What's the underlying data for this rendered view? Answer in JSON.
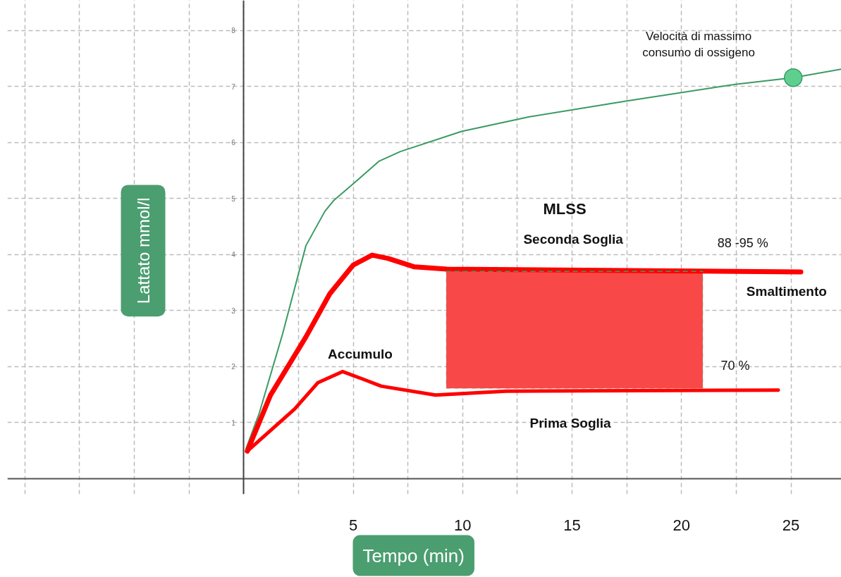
{
  "chart_data": {
    "type": "line",
    "xlabel": "Tempo (min)",
    "ylabel": "Lattato mmol/l",
    "xlim": [
      -10.8,
      27.3
    ],
    "ylim": [
      -0.28,
      8.54
    ],
    "xticks": [
      {
        "value": -10,
        "label": null
      },
      {
        "value": -7.5,
        "label": null
      },
      {
        "value": -5,
        "label": null
      },
      {
        "value": -2.5,
        "label": null
      },
      {
        "value": 0,
        "label": null
      },
      {
        "value": 2.5,
        "label": null
      },
      5,
      {
        "value": 7.5,
        "label": null
      },
      10,
      {
        "value": 12.5,
        "label": null
      },
      15,
      {
        "value": 17.5,
        "label": null
      },
      20,
      {
        "value": 22.5,
        "label": null
      },
      25
    ],
    "yticks": [
      1,
      2,
      3,
      4,
      5,
      6,
      7,
      8
    ],
    "grid": true,
    "series": [
      {
        "color": "#3a9a64",
        "x": [
          0.1,
          0.7,
          1.77,
          2.84,
          3.7,
          4.12,
          4.9,
          6.19,
          7.15,
          9.95,
          13.05,
          17.46,
          22.45,
          25.1,
          27.3
        ],
        "values": [
          0.53,
          1.16,
          2.58,
          4.16,
          4.77,
          4.97,
          5.23,
          5.67,
          5.84,
          6.2,
          6.46,
          6.74,
          7.04,
          7.16,
          7.31
        ]
      },
      {
        "type": "scatter",
        "marker": "circle",
        "color": "#5fcf8f",
        "x": [
          25.1
        ],
        "values": [
          7.16
        ]
      },
      {
        "color": "#ff0000",
        "x": [
          0.16,
          1.22,
          2.84,
          3.93,
          4.99,
          5.86,
          6.6,
          7.8,
          9.28,
          25.45
        ],
        "values": [
          0.49,
          1.49,
          2.53,
          3.3,
          3.81,
          3.99,
          3.93,
          3.78,
          3.74,
          3.69
        ]
      },
      {
        "color": "#ff0000",
        "x": [
          0.16,
          2.32,
          3.38,
          4.51,
          5.41,
          6.28,
          8.76,
          11.98,
          24.42
        ],
        "values": [
          0.49,
          1.24,
          1.71,
          1.91,
          1.78,
          1.65,
          1.49,
          1.56,
          1.58
        ]
      },
      {
        "color": "#3a9a64",
        "line_style": "dashed",
        "x": [
          9.25,
          20.97
        ],
        "values": [
          3.7,
          3.7
        ],
        "lower": [
          1.61,
          1.61
        ],
        "upper": [
          3.7,
          3.7
        ]
      }
    ],
    "annotations": [
      "MLSS",
      "Seconda Soglia",
      "88 -95 %",
      "Accumulo",
      "Smaltimento",
      "70 %",
      "Prima Soglia",
      "Velocità di massimo\nconsumo di ossigeno"
    ]
  }
}
